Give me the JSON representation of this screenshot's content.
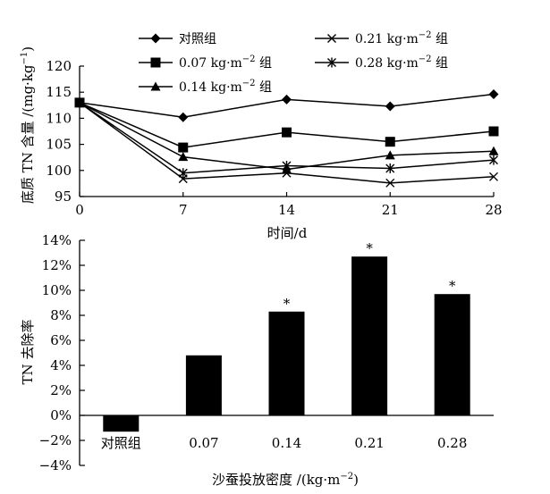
{
  "chart_data": [
    {
      "type": "line",
      "xlabel": "时间/d",
      "ylabel": "底质 TN 含量 /(mg·kg",
      "ylabel_sup": "−1",
      "ylabel_end": ")",
      "x": [
        0,
        7,
        14,
        21,
        28
      ],
      "xlim": [
        0,
        28
      ],
      "ylim": [
        95,
        120
      ],
      "yticks": [
        95,
        100,
        105,
        110,
        115,
        120
      ],
      "series": [
        {
          "name": "对照组",
          "legend_main": "对照组",
          "legend_sup": "",
          "legend_end": "",
          "marker": "diamond",
          "values": [
            113.0,
            110.2,
            113.6,
            112.3,
            114.6
          ]
        },
        {
          "name": "0.07 kg·m−2 组",
          "legend_main": "0.07 kg·m",
          "legend_sup": "−2",
          "legend_end": " 组",
          "marker": "square",
          "values": [
            113.0,
            104.4,
            107.3,
            105.5,
            107.5
          ]
        },
        {
          "name": "0.14 kg·m−2 组",
          "legend_main": "0.14 kg·m",
          "legend_sup": "−2",
          "legend_end": " 组",
          "marker": "triangle",
          "values": [
            113.0,
            102.6,
            100.2,
            102.9,
            103.7
          ]
        },
        {
          "name": "0.21 kg·m−2 组",
          "legend_main": "0.21 kg·m",
          "legend_sup": "−2",
          "legend_end": " 组",
          "marker": "x",
          "values": [
            113.0,
            98.4,
            99.5,
            97.6,
            98.8
          ]
        },
        {
          "name": "0.28 kg·m−2 组",
          "legend_main": "0.28 kg·m",
          "legend_sup": "−2",
          "legend_end": " 组",
          "marker": "star",
          "values": [
            113.0,
            99.5,
            100.9,
            100.4,
            102.0
          ]
        }
      ]
    },
    {
      "type": "bar",
      "ylabel": "TN 去除率",
      "xlabel": "沙蚕投放密度 /(kg·m",
      "xlabel_sup": "−2",
      "xlabel_end": ")",
      "categories": [
        "对照组",
        "0.07",
        "0.14",
        "0.21",
        "0.28"
      ],
      "values": [
        -1.3,
        4.8,
        8.3,
        12.7,
        9.7
      ],
      "significance": [
        "",
        "",
        "*",
        "*",
        "*"
      ],
      "ylim": [
        -4,
        14
      ],
      "yticks": [
        -4,
        -2,
        0,
        2,
        4,
        6,
        8,
        10,
        12,
        14
      ],
      "tick_suffix": "%"
    }
  ]
}
